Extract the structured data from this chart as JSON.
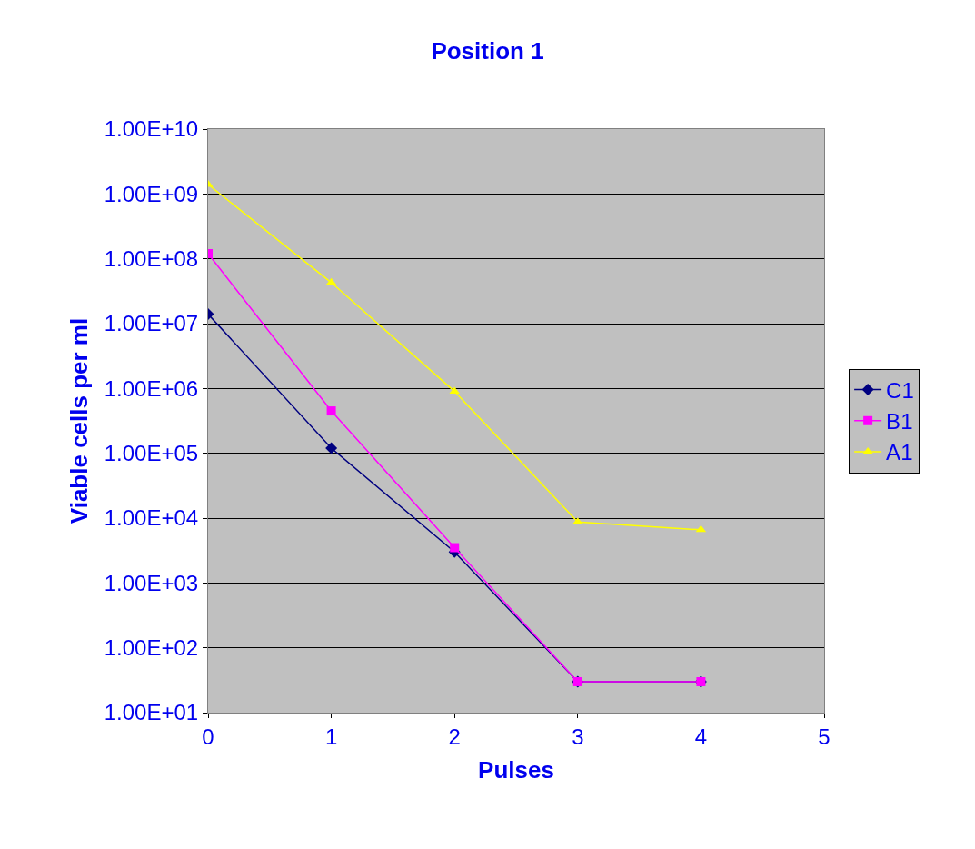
{
  "chart_data": {
    "type": "line",
    "title": "Position 1",
    "xlabel": "Pulses",
    "ylabel": "Viable cells per ml",
    "x": [
      0,
      1,
      2,
      3,
      4
    ],
    "series": [
      {
        "name": "C1",
        "color": "#000080",
        "marker": "diamond",
        "values": [
          14000000,
          120000,
          3000,
          30,
          30
        ]
      },
      {
        "name": "B1",
        "color": "#ff00ff",
        "marker": "square",
        "values": [
          120000000,
          450000,
          3500,
          30,
          30
        ]
      },
      {
        "name": "A1",
        "color": "#ffff00",
        "marker": "triangle",
        "values": [
          1400000000,
          43000000,
          900000,
          8700,
          6600
        ]
      }
    ],
    "log": "y",
    "xlim": [
      0,
      5
    ],
    "xticks": [
      0,
      1,
      2,
      3,
      4,
      5
    ],
    "ylim": [
      10,
      10000000000
    ],
    "yticks": [
      {
        "value": 10,
        "label": "1.00E+01"
      },
      {
        "value": 100,
        "label": "1.00E+02"
      },
      {
        "value": 1000,
        "label": "1.00E+03"
      },
      {
        "value": 10000,
        "label": "1.00E+04"
      },
      {
        "value": 100000,
        "label": "1.00E+05"
      },
      {
        "value": 1000000,
        "label": "1.00E+06"
      },
      {
        "value": 10000000,
        "label": "1.00E+07"
      },
      {
        "value": 100000000,
        "label": "1.00E+08"
      },
      {
        "value": 1000000000,
        "label": "1.00E+09"
      },
      {
        "value": 10000000000,
        "label": "1.00E+10"
      }
    ],
    "grid": "y",
    "legend": "right"
  }
}
